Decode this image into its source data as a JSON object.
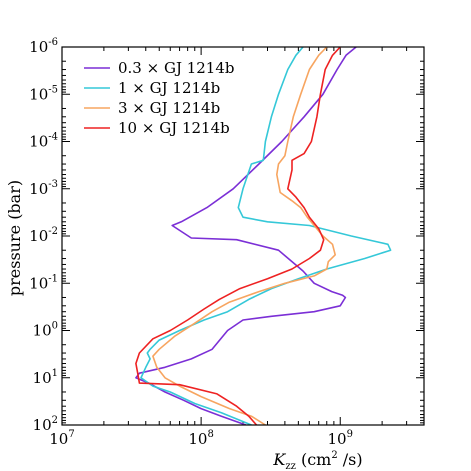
{
  "chart_data": {
    "type": "line",
    "x_scale": "log",
    "y_scale": "log",
    "y_inverted": true,
    "xlim": [
      10000000.0,
      4000000000.0
    ],
    "ylim": [
      100,
      1e-06
    ],
    "xlabel_main": "K",
    "xlabel_sub": "zz",
    "xlabel_units": "(cm",
    "xlabel_units_sup": "2",
    "xlabel_units_tail": " /s)",
    "ylabel": "pressure (bar)",
    "xticks": [
      {
        "base": "10",
        "exp": "7",
        "value": 10000000.0
      },
      {
        "base": "10",
        "exp": "8",
        "value": 100000000.0
      },
      {
        "base": "10",
        "exp": "9",
        "value": 1000000000.0
      }
    ],
    "yticks": [
      {
        "base": "10",
        "exp": "-6",
        "value": 1e-06
      },
      {
        "base": "10",
        "exp": "-5",
        "value": 1e-05
      },
      {
        "base": "10",
        "exp": "-4",
        "value": 0.0001
      },
      {
        "base": "10",
        "exp": "-3",
        "value": 0.001
      },
      {
        "base": "10",
        "exp": "-2",
        "value": 0.01
      },
      {
        "base": "10",
        "exp": "-1",
        "value": 0.1
      },
      {
        "base": "10",
        "exp": "0",
        "value": 1
      },
      {
        "base": "10",
        "exp": "1",
        "value": 10
      },
      {
        "base": "10",
        "exp": "2",
        "value": 100
      }
    ],
    "legend_position": "top-left",
    "series": [
      {
        "name": "0.3 × GJ 1214b",
        "color": "#7b2fd6",
        "points": [
          [
            1300000000.0,
            1e-06
          ],
          [
            1100000000.0,
            1.5e-06
          ],
          [
            950000000.0,
            3e-06
          ],
          [
            750000000.0,
            1e-05
          ],
          [
            550000000.0,
            3e-05
          ],
          [
            380000000.0,
            0.0001
          ],
          [
            260000000.0,
            0.0003
          ],
          [
            170000000.0,
            0.001
          ],
          [
            110000000.0,
            0.0025
          ],
          [
            72000000.0,
            0.005
          ],
          [
            62000000.0,
            0.006
          ],
          [
            85000000.0,
            0.011
          ],
          [
            180000000.0,
            0.012
          ],
          [
            360000000.0,
            0.02
          ],
          [
            540000000.0,
            0.055
          ],
          [
            650000000.0,
            0.1
          ],
          [
            870000000.0,
            0.15
          ],
          [
            1040000000.0,
            0.18
          ],
          [
            1090000000.0,
            0.2
          ],
          [
            1000000000.0,
            0.3
          ],
          [
            650000000.0,
            0.4
          ],
          [
            320000000.0,
            0.5
          ],
          [
            200000000.0,
            0.6
          ],
          [
            155000000.0,
            1.0
          ],
          [
            120000000.0,
            2.5
          ],
          [
            85000000.0,
            4
          ],
          [
            55000000.0,
            6
          ],
          [
            36000000.0,
            8
          ],
          [
            34000000.0,
            10
          ],
          [
            42000000.0,
            13
          ],
          [
            55000000.0,
            20
          ],
          [
            75000000.0,
            30
          ],
          [
            100000000.0,
            45
          ],
          [
            140000000.0,
            65
          ],
          [
            210000000.0,
            100
          ]
        ]
      },
      {
        "name": "1 × GJ 1214b",
        "color": "#35c8d8",
        "points": [
          [
            540000000.0,
            1e-06
          ],
          [
            480000000.0,
            1.5e-06
          ],
          [
            420000000.0,
            3e-06
          ],
          [
            360000000.0,
            1e-05
          ],
          [
            320000000.0,
            3e-05
          ],
          [
            290000000.0,
            0.0001
          ],
          [
            280000000.0,
            0.00025
          ],
          [
            230000000.0,
            0.0003
          ],
          [
            200000000.0,
            0.001
          ],
          [
            185000000.0,
            0.0025
          ],
          [
            200000000.0,
            0.004
          ],
          [
            300000000.0,
            0.005
          ],
          [
            600000000.0,
            0.006
          ],
          [
            1200000000.0,
            0.01
          ],
          [
            2200000000.0,
            0.015
          ],
          [
            2300000000.0,
            0.02
          ],
          [
            1500000000.0,
            0.03
          ],
          [
            800000000.0,
            0.05
          ],
          [
            500000000.0,
            0.08
          ],
          [
            320000000.0,
            0.13
          ],
          [
            220000000.0,
            0.22
          ],
          [
            155000000.0,
            0.4
          ],
          [
            105000000.0,
            0.6
          ],
          [
            70000000.0,
            1.0
          ],
          [
            50000000.0,
            1.6
          ],
          [
            43000000.0,
            2.5
          ],
          [
            41000000.0,
            3
          ],
          [
            43000000.0,
            4
          ],
          [
            40000000.0,
            6
          ],
          [
            37000000.0,
            10
          ],
          [
            45000000.0,
            15
          ],
          [
            60000000.0,
            20
          ],
          [
            90000000.0,
            35
          ],
          [
            140000000.0,
            55
          ],
          [
            230000000.0,
            100
          ]
        ]
      },
      {
        "name": "3 × GJ 1214b",
        "color": "#f7a560",
        "points": [
          [
            800000000.0,
            1e-06
          ],
          [
            700000000.0,
            1.5e-06
          ],
          [
            600000000.0,
            3e-06
          ],
          [
            520000000.0,
            1e-05
          ],
          [
            460000000.0,
            3e-05
          ],
          [
            420000000.0,
            0.0001
          ],
          [
            400000000.0,
            0.0002
          ],
          [
            360000000.0,
            0.0003
          ],
          [
            350000000.0,
            0.0005
          ],
          [
            370000000.0,
            0.0012
          ],
          [
            450000000.0,
            0.0018
          ],
          [
            520000000.0,
            0.0025
          ],
          [
            580000000.0,
            0.004
          ],
          [
            650000000.0,
            0.006
          ],
          [
            750000000.0,
            0.01
          ],
          [
            880000000.0,
            0.015
          ],
          [
            920000000.0,
            0.025
          ],
          [
            820000000.0,
            0.035
          ],
          [
            800000000.0,
            0.05
          ],
          [
            650000000.0,
            0.07
          ],
          [
            400000000.0,
            0.1
          ],
          [
            260000000.0,
            0.15
          ],
          [
            160000000.0,
            0.25
          ],
          [
            120000000.0,
            0.4
          ],
          [
            90000000.0,
            0.7
          ],
          [
            65000000.0,
            1.3
          ],
          [
            50000000.0,
            2.5
          ],
          [
            45000000.0,
            3.5
          ],
          [
            48000000.0,
            6
          ],
          [
            55000000.0,
            10
          ],
          [
            70000000.0,
            15
          ],
          [
            100000000.0,
            25
          ],
          [
            160000000.0,
            45
          ],
          [
            230000000.0,
            65
          ],
          [
            290000000.0,
            100
          ]
        ]
      },
      {
        "name": "10 × GJ 1214b",
        "color": "#ee2222",
        "points": [
          [
            1000000000.0,
            1e-06
          ],
          [
            880000000.0,
            1.5e-06
          ],
          [
            780000000.0,
            3e-06
          ],
          [
            720000000.0,
            1e-05
          ],
          [
            680000000.0,
            3e-05
          ],
          [
            620000000.0,
            0.0001
          ],
          [
            550000000.0,
            0.00018
          ],
          [
            450000000.0,
            0.00025
          ],
          [
            450000000.0,
            0.0004
          ],
          [
            420000000.0,
            0.001
          ],
          [
            480000000.0,
            0.0015
          ],
          [
            550000000.0,
            0.0025
          ],
          [
            600000000.0,
            0.004
          ],
          [
            700000000.0,
            0.007
          ],
          [
            760000000.0,
            0.012
          ],
          [
            720000000.0,
            0.02
          ],
          [
            600000000.0,
            0.03
          ],
          [
            450000000.0,
            0.05
          ],
          [
            300000000.0,
            0.08
          ],
          [
            190000000.0,
            0.13
          ],
          [
            135000000.0,
            0.22
          ],
          [
            105000000.0,
            0.35
          ],
          [
            80000000.0,
            0.6
          ],
          [
            60000000.0,
            1.0
          ],
          [
            45000000.0,
            1.5
          ],
          [
            36000000.0,
            3
          ],
          [
            34000000.0,
            5
          ],
          [
            35000000.0,
            8
          ],
          [
            36000000.0,
            13
          ],
          [
            70000000.0,
            14
          ],
          [
            130000000.0,
            22
          ],
          [
            180000000.0,
            40
          ],
          [
            220000000.0,
            65
          ],
          [
            250000000.0,
            100
          ]
        ]
      }
    ]
  }
}
